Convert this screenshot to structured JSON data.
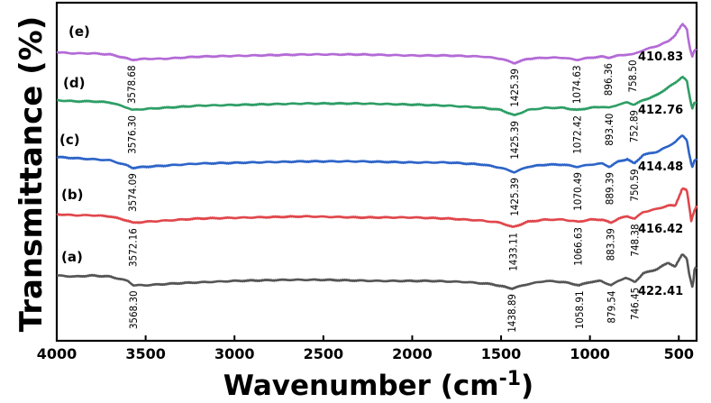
{
  "chart_data": {
    "type": "line",
    "title": "",
    "xlabel_main": "Wavenumber (cm",
    "xlabel_sup": "-1",
    "xlabel_close": ")",
    "ylabel": "Transmittance (%)",
    "xlim": [
      4000,
      400
    ],
    "x_reversed": true,
    "grid": false,
    "x_ticks": [
      "4000",
      "3500",
      "3000",
      "2500",
      "2000",
      "1500",
      "1000",
      "500"
    ],
    "x_tick_values": [
      4000,
      3500,
      3000,
      2500,
      2000,
      1500,
      1000,
      500
    ],
    "series": [
      {
        "name": "(a)",
        "color": "#555555",
        "points": [
          [
            4000,
            0.12
          ],
          [
            3900,
            0.11
          ],
          [
            3800,
            0.12
          ],
          [
            3700,
            0.11
          ],
          [
            3600,
            0.07
          ],
          [
            3568,
            0.03
          ],
          [
            3500,
            0.03
          ],
          [
            3400,
            0.04
          ],
          [
            3300,
            0.05
          ],
          [
            3000,
            0.07
          ],
          [
            2700,
            0.08
          ],
          [
            2500,
            0.08
          ],
          [
            2200,
            0.07
          ],
          [
            1900,
            0.07
          ],
          [
            1700,
            0.06
          ],
          [
            1550,
            0.04
          ],
          [
            1439,
            0.0
          ],
          [
            1350,
            0.04
          ],
          [
            1250,
            0.07
          ],
          [
            1150,
            0.06
          ],
          [
            1059,
            0.03
          ],
          [
            1000,
            0.06
          ],
          [
            940,
            0.07
          ],
          [
            880,
            0.03
          ],
          [
            840,
            0.07
          ],
          [
            800,
            0.1
          ],
          [
            747,
            0.06
          ],
          [
            700,
            0.14
          ],
          [
            620,
            0.18
          ],
          [
            560,
            0.24
          ],
          [
            520,
            0.2
          ],
          [
            480,
            0.32
          ],
          [
            455,
            0.28
          ],
          [
            440,
            0.12
          ],
          [
            422,
            0.0
          ],
          [
            410,
            0.2
          ],
          [
            400,
            0.18
          ]
        ],
        "peaks": [
          {
            "label": "3568.30",
            "x": 3568
          },
          {
            "label": "1438.89",
            "x": 1439
          },
          {
            "label": "1058.91",
            "x": 1059
          },
          {
            "label": "879.54",
            "x": 880
          },
          {
            "label": "746.45",
            "x": 747
          }
        ],
        "end_label": "422.41"
      },
      {
        "name": "(b)",
        "color": "#e0474c",
        "points": [
          [
            4000,
            0.12
          ],
          [
            3900,
            0.11
          ],
          [
            3800,
            0.11
          ],
          [
            3700,
            0.1
          ],
          [
            3600,
            0.06
          ],
          [
            3572,
            0.04
          ],
          [
            3500,
            0.05
          ],
          [
            3400,
            0.06
          ],
          [
            3200,
            0.08
          ],
          [
            2900,
            0.09
          ],
          [
            2600,
            0.1
          ],
          [
            2300,
            0.09
          ],
          [
            2000,
            0.09
          ],
          [
            1800,
            0.08
          ],
          [
            1600,
            0.06
          ],
          [
            1500,
            0.04
          ],
          [
            1433,
            0.0
          ],
          [
            1350,
            0.05
          ],
          [
            1250,
            0.07
          ],
          [
            1150,
            0.07
          ],
          [
            1067,
            0.05
          ],
          [
            1000,
            0.07
          ],
          [
            930,
            0.07
          ],
          [
            883,
            0.04
          ],
          [
            840,
            0.08
          ],
          [
            790,
            0.1
          ],
          [
            748,
            0.08
          ],
          [
            700,
            0.14
          ],
          [
            620,
            0.17
          ],
          [
            560,
            0.2
          ],
          [
            520,
            0.2
          ],
          [
            480,
            0.36
          ],
          [
            455,
            0.34
          ],
          [
            440,
            0.18
          ],
          [
            430,
            0.06
          ],
          [
            416,
            0.14
          ],
          [
            400,
            0.2
          ]
        ],
        "peaks": [
          {
            "label": "3572.16",
            "x": 3572
          },
          {
            "label": "1433.11",
            "x": 1433
          },
          {
            "label": "1066.63",
            "x": 1067
          },
          {
            "label": "883.39",
            "x": 883
          },
          {
            "label": "748.38",
            "x": 748
          }
        ],
        "end_label": "416.42"
      },
      {
        "name": "(c)",
        "color": "#2d64c8",
        "points": [
          [
            4000,
            0.14
          ],
          [
            3900,
            0.13
          ],
          [
            3800,
            0.12
          ],
          [
            3700,
            0.11
          ],
          [
            3600,
            0.06
          ],
          [
            3574,
            0.04
          ],
          [
            3500,
            0.05
          ],
          [
            3400,
            0.06
          ],
          [
            3200,
            0.08
          ],
          [
            2900,
            0.09
          ],
          [
            2600,
            0.1
          ],
          [
            2300,
            0.1
          ],
          [
            2000,
            0.09
          ],
          [
            1800,
            0.09
          ],
          [
            1600,
            0.07
          ],
          [
            1500,
            0.04
          ],
          [
            1425,
            0.0
          ],
          [
            1350,
            0.05
          ],
          [
            1250,
            0.07
          ],
          [
            1150,
            0.07
          ],
          [
            1070,
            0.05
          ],
          [
            1000,
            0.07
          ],
          [
            930,
            0.08
          ],
          [
            889,
            0.05
          ],
          [
            840,
            0.1
          ],
          [
            790,
            0.12
          ],
          [
            751,
            0.08
          ],
          [
            700,
            0.16
          ],
          [
            620,
            0.19
          ],
          [
            560,
            0.24
          ],
          [
            520,
            0.28
          ],
          [
            480,
            0.34
          ],
          [
            455,
            0.3
          ],
          [
            440,
            0.16
          ],
          [
            425,
            0.04
          ],
          [
            414,
            0.1
          ],
          [
            400,
            0.12
          ]
        ],
        "peaks": [
          {
            "label": "3574.09",
            "x": 3574
          },
          {
            "label": "1425.39",
            "x": 1425
          },
          {
            "label": "1070.49",
            "x": 1070
          },
          {
            "label": "889.39",
            "x": 889
          },
          {
            "label": "750.59",
            "x": 751
          }
        ],
        "end_label": "414.48"
      },
      {
        "name": "(d)",
        "color": "#2e9e66",
        "points": [
          [
            4000,
            0.14
          ],
          [
            3900,
            0.13
          ],
          [
            3800,
            0.13
          ],
          [
            3700,
            0.12
          ],
          [
            3600,
            0.07
          ],
          [
            3576,
            0.05
          ],
          [
            3500,
            0.06
          ],
          [
            3400,
            0.07
          ],
          [
            3200,
            0.09
          ],
          [
            2900,
            0.1
          ],
          [
            2600,
            0.11
          ],
          [
            2300,
            0.11
          ],
          [
            2000,
            0.1
          ],
          [
            1800,
            0.09
          ],
          [
            1600,
            0.07
          ],
          [
            1500,
            0.05
          ],
          [
            1425,
            0.0
          ],
          [
            1350,
            0.05
          ],
          [
            1250,
            0.07
          ],
          [
            1150,
            0.07
          ],
          [
            1072,
            0.05
          ],
          [
            1000,
            0.07
          ],
          [
            930,
            0.08
          ],
          [
            893,
            0.07
          ],
          [
            840,
            0.1
          ],
          [
            790,
            0.12
          ],
          [
            753,
            0.1
          ],
          [
            700,
            0.14
          ],
          [
            620,
            0.19
          ],
          [
            560,
            0.26
          ],
          [
            520,
            0.3
          ],
          [
            480,
            0.36
          ],
          [
            455,
            0.32
          ],
          [
            440,
            0.18
          ],
          [
            425,
            0.06
          ],
          [
            413,
            0.12
          ],
          [
            400,
            0.12
          ]
        ],
        "peaks": [
          {
            "label": "3576.30",
            "x": 3576
          },
          {
            "label": "1425.39",
            "x": 1425
          },
          {
            "label": "1072.42",
            "x": 1072
          },
          {
            "label": "893.40",
            "x": 893
          },
          {
            "label": "752.89",
            "x": 753
          }
        ],
        "end_label": "412.76"
      },
      {
        "name": "(e)",
        "color": "#b36ad6",
        "points": [
          [
            4000,
            0.1
          ],
          [
            3900,
            0.09
          ],
          [
            3800,
            0.09
          ],
          [
            3700,
            0.08
          ],
          [
            3620,
            0.05
          ],
          [
            3579,
            0.03
          ],
          [
            3500,
            0.04
          ],
          [
            3400,
            0.04
          ],
          [
            3200,
            0.06
          ],
          [
            2900,
            0.07
          ],
          [
            2600,
            0.08
          ],
          [
            2300,
            0.08
          ],
          [
            2000,
            0.07
          ],
          [
            1800,
            0.07
          ],
          [
            1600,
            0.06
          ],
          [
            1500,
            0.04
          ],
          [
            1425,
            0.0
          ],
          [
            1350,
            0.04
          ],
          [
            1250,
            0.05
          ],
          [
            1150,
            0.05
          ],
          [
            1075,
            0.03
          ],
          [
            1000,
            0.05
          ],
          [
            930,
            0.06
          ],
          [
            896,
            0.05
          ],
          [
            840,
            0.07
          ],
          [
            790,
            0.08
          ],
          [
            759,
            0.08
          ],
          [
            700,
            0.12
          ],
          [
            620,
            0.16
          ],
          [
            560,
            0.2
          ],
          [
            520,
            0.26
          ],
          [
            480,
            0.36
          ],
          [
            455,
            0.32
          ],
          [
            440,
            0.16
          ],
          [
            425,
            0.06
          ],
          [
            411,
            0.12
          ],
          [
            400,
            0.12
          ]
        ],
        "peaks": [
          {
            "label": "3578.68",
            "x": 3579
          },
          {
            "label": "1425.39",
            "x": 1425
          },
          {
            "label": "1074.63",
            "x": 1075
          },
          {
            "label": "896.36",
            "x": 896
          },
          {
            "label": "758.50",
            "x": 759
          }
        ],
        "end_label": "410.83"
      }
    ]
  }
}
